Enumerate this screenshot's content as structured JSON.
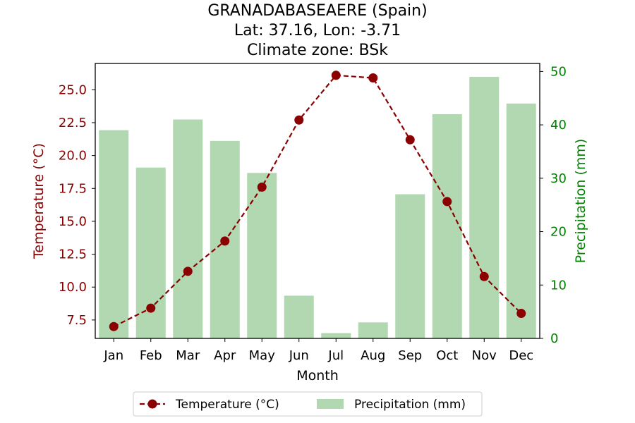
{
  "chart_data": {
    "type": "bar+line",
    "title_lines": [
      "GRANADABASEAERE (Spain)",
      "Lat: 37.16, Lon: -3.71",
      "Climate zone: BSk"
    ],
    "xlabel": "Month",
    "ylabel_left": "Temperature (°C)",
    "ylabel_right": "Precipitation (mm)",
    "categories": [
      "Jan",
      "Feb",
      "Mar",
      "Apr",
      "May",
      "Jun",
      "Jul",
      "Aug",
      "Sep",
      "Oct",
      "Nov",
      "Dec"
    ],
    "temperature": {
      "name": "Temperature (°C)",
      "color": "#8b0000",
      "style": "dashed-line-with-circle-markers",
      "values": [
        7.0,
        8.4,
        11.2,
        13.5,
        17.6,
        22.7,
        26.1,
        25.9,
        21.2,
        16.5,
        10.8,
        8.0
      ]
    },
    "precipitation": {
      "name": "Precipitation (mm)",
      "color": "#b2d8b2",
      "values": [
        39,
        32,
        41,
        37,
        31,
        8,
        1,
        3,
        27,
        42,
        49,
        44
      ]
    },
    "ylim_left": [
      6.1,
      27.0
    ],
    "ylim_right": [
      0,
      51.5
    ],
    "yticks_left": [
      "7.5",
      "10.0",
      "12.5",
      "15.0",
      "17.5",
      "20.0",
      "22.5",
      "25.0"
    ],
    "yticks_right": [
      "0",
      "10",
      "20",
      "30",
      "40",
      "50"
    ],
    "left_axis_color": "#8b0000",
    "right_axis_color": "#008000",
    "legend_position": "bottom-center",
    "grid": false
  }
}
